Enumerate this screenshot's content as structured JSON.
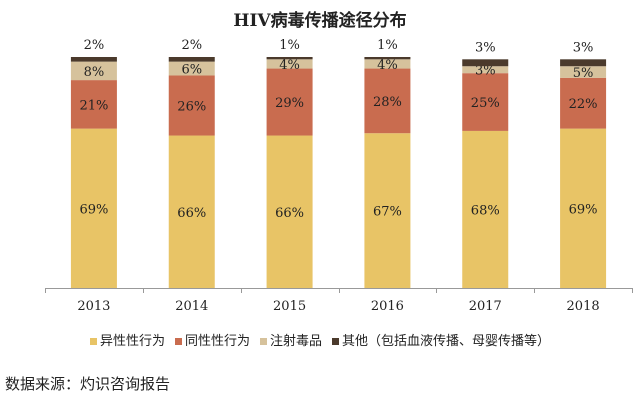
{
  "chart_data": {
    "type": "bar",
    "stacked": true,
    "title": "HIV病毒传播途径分布",
    "categories": [
      "2013",
      "2014",
      "2015",
      "2016",
      "2017",
      "2018"
    ],
    "ylim": [
      0,
      100
    ],
    "unit": "%",
    "series": [
      {
        "name": "异性性行为",
        "color": "#E8C466",
        "values": [
          69,
          66,
          66,
          67,
          68,
          69
        ]
      },
      {
        "name": "同性性行为",
        "color": "#C96C4F",
        "values": [
          21,
          26,
          29,
          28,
          25,
          22
        ]
      },
      {
        "name": "注射毒品",
        "color": "#D6C29C",
        "values": [
          8,
          6,
          4,
          4,
          3,
          5
        ]
      },
      {
        "name": "其他（包括血液传播、母婴传播等）",
        "color": "#4B3A2C",
        "values": [
          2,
          2,
          1,
          1,
          3,
          3
        ]
      }
    ],
    "legend_position": "bottom",
    "grid": false
  },
  "source": "数据来源：灼识咨询报告"
}
